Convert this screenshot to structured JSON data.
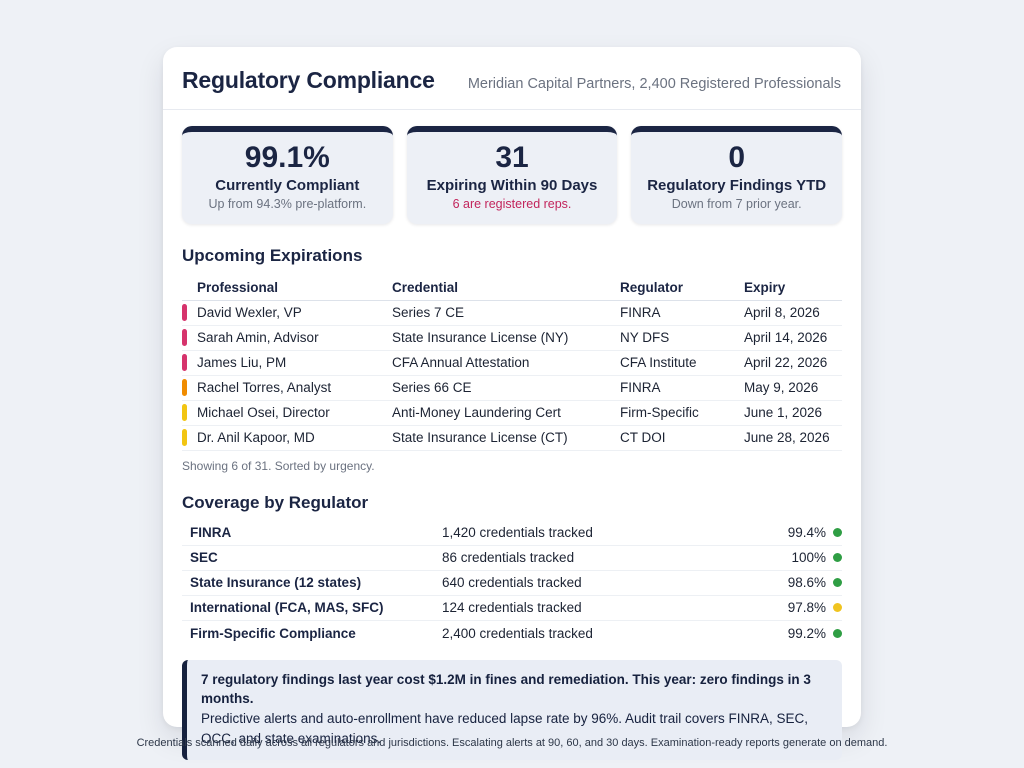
{
  "page": {
    "caption": "Credentials scanned daily across all regulators and jurisdictions. Escalating alerts at 90, 60, and 30 days. Examination-ready reports generate on demand."
  },
  "header": {
    "title": "Regulatory Compliance",
    "subtitle": "Meridian Capital Partners, 2,400 Registered Professionals"
  },
  "stats": [
    {
      "value": "99.1%",
      "label": "Currently Compliant",
      "note": "Up from 94.3% pre-platform.",
      "note_color": "#6b7280"
    },
    {
      "value": "31",
      "label": "Expiring Within 90 Days",
      "note": "6 are registered reps.",
      "note_color": "#c2255c"
    },
    {
      "value": "0",
      "label": "Regulatory Findings YTD",
      "note": "Down from 7 prior year.",
      "note_color": "#6b7280"
    }
  ],
  "expirations": {
    "title": "Upcoming Expirations",
    "columns": [
      "Professional",
      "Credential",
      "Regulator",
      "Expiry"
    ],
    "rows": [
      {
        "professional": "David Wexler, VP",
        "credential": "Series 7 CE",
        "regulator": "FINRA",
        "expiry": "April 8, 2026",
        "urgency_color": "#d6336c"
      },
      {
        "professional": "Sarah Amin, Advisor",
        "credential": "State Insurance License (NY)",
        "regulator": "NY DFS",
        "expiry": "April 14, 2026",
        "urgency_color": "#d6336c"
      },
      {
        "professional": "James Liu, PM",
        "credential": "CFA Annual Attestation",
        "regulator": "CFA Institute",
        "expiry": "April 22, 2026",
        "urgency_color": "#d6336c"
      },
      {
        "professional": "Rachel Torres, Analyst",
        "credential": "Series 66 CE",
        "regulator": "FINRA",
        "expiry": "May 9, 2026",
        "urgency_color": "#f08c00"
      },
      {
        "professional": "Michael Osei, Director",
        "credential": "Anti-Money Laundering Cert",
        "regulator": "Firm-Specific",
        "expiry": "June 1, 2026",
        "urgency_color": "#f2c512"
      },
      {
        "professional": "Dr. Anil Kapoor, MD",
        "credential": "State Insurance License (CT)",
        "regulator": "CT DOI",
        "expiry": "June 28, 2026",
        "urgency_color": "#f2c512"
      }
    ],
    "footnote": "Showing 6 of 31. Sorted by urgency."
  },
  "coverage": {
    "title": "Coverage by Regulator",
    "rows": [
      {
        "regulator": "FINRA",
        "tracked": "1,420 credentials tracked",
        "pct": "99.4%",
        "status_color": "#2f9e44"
      },
      {
        "regulator": "SEC",
        "tracked": "86 credentials tracked",
        "pct": "100%",
        "status_color": "#2f9e44"
      },
      {
        "regulator": "State Insurance (12 states)",
        "tracked": "640 credentials tracked",
        "pct": "98.6%",
        "status_color": "#2f9e44"
      },
      {
        "regulator": "International (FCA, MAS, SFC)",
        "tracked": "124 credentials tracked",
        "pct": "97.8%",
        "status_color": "#f0c420"
      },
      {
        "regulator": "Firm-Specific Compliance",
        "tracked": "2,400 credentials tracked",
        "pct": "99.2%",
        "status_color": "#2f9e44"
      }
    ]
  },
  "note": {
    "highlight": "7 regulatory findings last year cost $1.2M in fines and remediation. This year: zero findings in 3 months.",
    "body": "Predictive alerts and auto-enrollment have reduced lapse rate by 96%. Audit trail covers FINRA, SEC, OCC, and state examinations."
  }
}
